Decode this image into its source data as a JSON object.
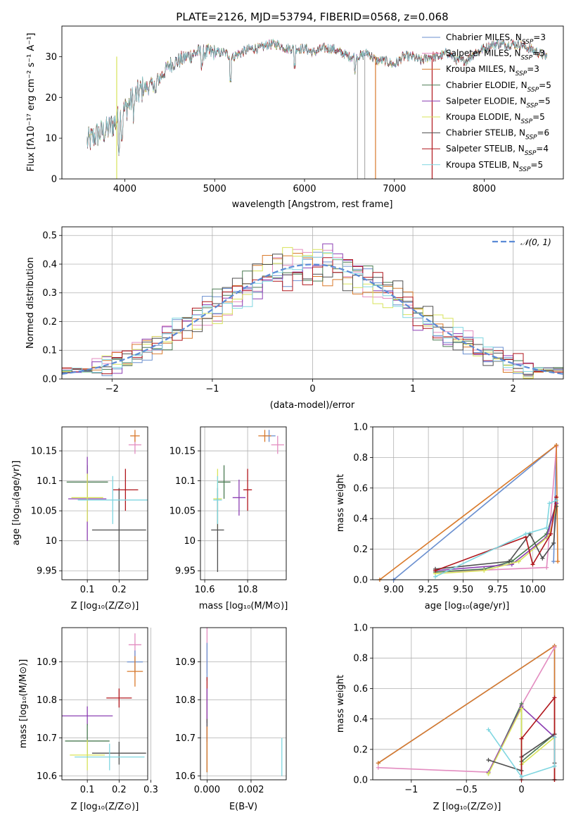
{
  "chart_data": [
    {
      "id": "spectrum",
      "type": "line",
      "title": "PLATE=2126, MJD=53794, FIBERID=0568, z=0.068",
      "xlabel": "wavelength [Angstrom, rest frame]",
      "ylabel": "Flux [fλ10⁻¹⁷ erg cm⁻² s⁻¹ A⁻¹]",
      "xlim": [
        3300,
        8880
      ],
      "ylim": [
        0,
        37.5
      ],
      "xticks": [
        4000,
        5000,
        6000,
        7000,
        8000
      ],
      "yticks": [
        0,
        10,
        20,
        30
      ],
      "grid": false,
      "legend_position": "top-right",
      "series": [
        {
          "name": "Chabrier MILES, N_SSP=3",
          "color": "#6a8fcf"
        },
        {
          "name": "Salpeter MILES, N_SSP=3",
          "color": "#e38cc0"
        },
        {
          "name": "Kroupa MILES, N_SSP=3",
          "color": "#d97a2b"
        },
        {
          "name": "Chabrier ELODIE, N_SSP=5",
          "color": "#4a7a52"
        },
        {
          "name": "Salpeter ELODIE, N_SSP=5",
          "color": "#8c3fb3"
        },
        {
          "name": "Kroupa ELODIE, N_SSP=5",
          "color": "#d7e35a"
        },
        {
          "name": "Chabrier STELIB, N_SSP=6",
          "color": "#4f4f4f"
        },
        {
          "name": "Salpeter STELIB, N_SSP=4",
          "color": "#b0161c"
        },
        {
          "name": "Kroupa STELIB, N_SSP=5",
          "color": "#7fd6e0"
        }
      ],
      "continuum_points": [
        [
          3580,
          9
        ],
        [
          3700,
          11
        ],
        [
          3800,
          12
        ],
        [
          3900,
          14
        ],
        [
          4000,
          17
        ],
        [
          4100,
          20
        ],
        [
          4200,
          22
        ],
        [
          4300,
          23
        ],
        [
          4400,
          25
        ],
        [
          4500,
          28
        ],
        [
          4600,
          29
        ],
        [
          4700,
          30
        ],
        [
          4800,
          31
        ],
        [
          4900,
          31
        ],
        [
          5000,
          31
        ],
        [
          5100,
          31
        ],
        [
          5200,
          30
        ],
        [
          5300,
          31
        ],
        [
          5400,
          32
        ],
        [
          5500,
          32
        ],
        [
          5600,
          33
        ],
        [
          5700,
          33
        ],
        [
          5800,
          32
        ],
        [
          5900,
          32
        ],
        [
          6000,
          32
        ],
        [
          6100,
          31
        ],
        [
          6200,
          32
        ],
        [
          6300,
          32
        ],
        [
          6400,
          31
        ],
        [
          6500,
          30
        ],
        [
          6600,
          30
        ],
        [
          6700,
          31
        ],
        [
          6800,
          29
        ],
        [
          6900,
          29
        ],
        [
          7000,
          28
        ],
        [
          7100,
          30
        ],
        [
          7200,
          30
        ],
        [
          7300,
          29
        ],
        [
          7400,
          30
        ],
        [
          7500,
          30
        ],
        [
          7600,
          31
        ],
        [
          7700,
          29
        ],
        [
          7800,
          29
        ],
        [
          7900,
          31
        ],
        [
          8000,
          32
        ],
        [
          8100,
          33
        ],
        [
          8200,
          33
        ],
        [
          8300,
          33
        ],
        [
          8400,
          33
        ],
        [
          8500,
          32
        ],
        [
          8600,
          31
        ],
        [
          8700,
          30
        ]
      ],
      "dropouts": [
        3910,
        6590,
        6670,
        6790,
        7420
      ]
    },
    {
      "id": "residuals",
      "type": "histogram",
      "xlabel": "(data-model)/error",
      "ylabel": "Normed distribution",
      "xlim": [
        -2.5,
        2.5
      ],
      "ylim": [
        0,
        0.53
      ],
      "xticks": [
        -2,
        -1,
        0,
        1,
        2
      ],
      "yticks": [
        0.0,
        0.1,
        0.2,
        0.3,
        0.4,
        0.5
      ],
      "grid": true,
      "legend": "𝒩(0, 1)",
      "legend_position": "top-right",
      "bin_width": 0.1,
      "reference_curve": "normal(0,1)",
      "series_color_order": [
        "#6a8fcf",
        "#e38cc0",
        "#d97a2b",
        "#4a7a52",
        "#8c3fb3",
        "#d7e35a",
        "#4f4f4f",
        "#b0161c",
        "#7fd6e0"
      ]
    },
    {
      "id": "z-age",
      "type": "scatter",
      "xlabel": "Z [log₁₀(Z/Z⊙)]",
      "ylabel": "age  [log₁₀(age/yr)]",
      "xlim": [
        0.02,
        0.29
      ],
      "ylim": [
        9.935,
        10.19
      ],
      "xticks": [
        0.1,
        0.2
      ],
      "yticks": [
        9.95,
        10.0,
        10.05,
        10.1,
        10.15
      ],
      "grid": true,
      "points": [
        {
          "x": 0.25,
          "y": 10.16,
          "xerr": 0.02,
          "yerr": 0.015,
          "color": "#e38cc0"
        },
        {
          "x": 0.25,
          "y": 10.175,
          "xerr": 0.015,
          "yerr": 0.01,
          "color": "#d97a2b"
        },
        {
          "x": 0.1,
          "y": 10.098,
          "xerr": 0.065,
          "yerr": 0.028,
          "color": "#4a7a52"
        },
        {
          "x": 0.1,
          "y": 10.07,
          "xerr": 0.06,
          "yerr": 0.07,
          "color": "#8c3fb3"
        },
        {
          "x": 0.1,
          "y": 10.072,
          "xerr": 0.05,
          "yerr": 0.04,
          "color": "#d7e35a"
        },
        {
          "x": 0.2,
          "y": 10.018,
          "xerr": 0.085,
          "yerr": 0.07,
          "color": "#4f4f4f"
        },
        {
          "x": 0.22,
          "y": 10.085,
          "xerr": 0.04,
          "yerr": 0.035,
          "color": "#b0161c"
        },
        {
          "x": 0.18,
          "y": 10.068,
          "xerr": 0.11,
          "yerr": 0.04,
          "color": "#7fd6e0"
        }
      ]
    },
    {
      "id": "mass-age",
      "type": "scatter",
      "xlabel": "mass [log₁₀(M/M⊙)]",
      "ylabel": "",
      "xlim": [
        10.58,
        10.98
      ],
      "ylim": [
        9.935,
        10.19
      ],
      "xticks": [
        10.6,
        10.8
      ],
      "yticks": [
        9.95,
        10.0,
        10.05,
        10.1,
        10.15
      ],
      "grid": true,
      "points": [
        {
          "x": 10.94,
          "y": 10.16,
          "xerr": 0.03,
          "yerr": 0.015,
          "color": "#e38cc0"
        },
        {
          "x": 10.9,
          "y": 10.175,
          "xerr": 0.03,
          "yerr": 0.01,
          "color": "#6a8fcf"
        },
        {
          "x": 10.88,
          "y": 10.175,
          "xerr": 0.03,
          "yerr": 0.01,
          "color": "#d97a2b"
        },
        {
          "x": 10.69,
          "y": 10.098,
          "xerr": 0.03,
          "yerr": 0.028,
          "color": "#4a7a52"
        },
        {
          "x": 10.76,
          "y": 10.072,
          "xerr": 0.03,
          "yerr": 0.03,
          "color": "#8c3fb3"
        },
        {
          "x": 10.66,
          "y": 10.07,
          "xerr": 0.02,
          "yerr": 0.05,
          "color": "#d7e35a"
        },
        {
          "x": 10.66,
          "y": 10.018,
          "xerr": 0.03,
          "yerr": 0.07,
          "color": "#4f4f4f"
        },
        {
          "x": 10.8,
          "y": 10.085,
          "xerr": 0.02,
          "yerr": 0.035,
          "color": "#b0161c"
        },
        {
          "x": 10.66,
          "y": 10.068,
          "xerr": 0.02,
          "yerr": 0.04,
          "color": "#7fd6e0"
        }
      ]
    },
    {
      "id": "age-weight",
      "type": "line",
      "xlabel": "age  [log₁₀(age/yr)]",
      "ylabel": "mass weight",
      "xlim": [
        8.85,
        10.22
      ],
      "ylim": [
        0.0,
        1.0
      ],
      "xticks": [
        9.0,
        9.25,
        9.5,
        9.75,
        10.0
      ],
      "xtick_labels": [
        "9.00",
        "9.25",
        "9.50",
        "9.75",
        "10.00"
      ],
      "yticks": [
        0.0,
        0.2,
        0.4,
        0.6,
        0.8,
        1.0
      ],
      "grid": true,
      "series": [
        {
          "color": "#6a8fcf",
          "points": [
            [
              9.0,
              0.0
            ],
            [
              10.17,
              0.88
            ],
            [
              10.15,
              0.12
            ]
          ]
        },
        {
          "color": "#e38cc0",
          "points": [
            [
              9.3,
              0.05
            ],
            [
              10.1,
              0.08
            ],
            [
              10.17,
              0.87
            ]
          ]
        },
        {
          "color": "#d97a2b",
          "points": [
            [
              8.9,
              0.0
            ],
            [
              10.17,
              0.88
            ],
            [
              10.18,
              0.12
            ]
          ]
        },
        {
          "color": "#4a7a52",
          "points": [
            [
              9.3,
              0.05
            ],
            [
              9.65,
              0.07
            ],
            [
              9.85,
              0.12
            ],
            [
              10.1,
              0.3
            ],
            [
              10.17,
              0.5
            ]
          ]
        },
        {
          "color": "#8c3fb3",
          "points": [
            [
              9.3,
              0.06
            ],
            [
              9.85,
              0.1
            ],
            [
              10.1,
              0.28
            ],
            [
              10.17,
              0.5
            ]
          ]
        },
        {
          "color": "#d7e35a",
          "points": [
            [
              9.3,
              0.04
            ],
            [
              9.65,
              0.06
            ],
            [
              9.9,
              0.12
            ],
            [
              10.12,
              0.29
            ],
            [
              10.17,
              0.48
            ]
          ]
        },
        {
          "color": "#4f4f4f",
          "points": [
            [
              9.3,
              0.07
            ],
            [
              9.83,
              0.12
            ],
            [
              9.98,
              0.3
            ],
            [
              10.07,
              0.14
            ],
            [
              10.15,
              0.24
            ],
            [
              10.17,
              0.48
            ]
          ]
        },
        {
          "color": "#b0161c",
          "points": [
            [
              9.3,
              0.06
            ],
            [
              9.95,
              0.28
            ],
            [
              10.0,
              0.1
            ],
            [
              10.13,
              0.3
            ],
            [
              10.17,
              0.54
            ]
          ]
        },
        {
          "color": "#7fd6e0",
          "points": [
            [
              9.3,
              0.02
            ],
            [
              9.95,
              0.3
            ],
            [
              10.1,
              0.34
            ],
            [
              10.12,
              0.5
            ],
            [
              10.17,
              0.52
            ]
          ]
        }
      ]
    },
    {
      "id": "z-mass",
      "type": "scatter",
      "xlabel": "Z [log₁₀(Z/Z⊙)]",
      "ylabel": "mass [log₁₀(M/M⊙)]",
      "xlim": [
        0.02,
        0.29
      ],
      "ylim": [
        10.59,
        10.99
      ],
      "xticks": [
        0.1,
        0.2,
        0.3
      ],
      "yticks": [
        10.6,
        10.7,
        10.8,
        10.9
      ],
      "grid": true,
      "points": [
        {
          "x": 0.25,
          "y": 10.945,
          "xerr": 0.02,
          "yerr": 0.03,
          "color": "#e38cc0"
        },
        {
          "x": 0.25,
          "y": 10.9,
          "xerr": 0.025,
          "yerr": 0.03,
          "color": "#6a8fcf"
        },
        {
          "x": 0.25,
          "y": 10.875,
          "xerr": 0.025,
          "yerr": 0.04,
          "color": "#d97a2b"
        },
        {
          "x": 0.2,
          "y": 10.805,
          "xerr": 0.04,
          "yerr": 0.025,
          "color": "#b0161c"
        },
        {
          "x": 0.1,
          "y": 10.758,
          "xerr": 0.08,
          "yerr": 0.025,
          "color": "#8c3fb3"
        },
        {
          "x": 0.1,
          "y": 10.692,
          "xerr": 0.07,
          "yerr": 0.045,
          "color": "#4a7a52"
        },
        {
          "x": 0.1,
          "y": 10.655,
          "xerr": 0.055,
          "yerr": 0.04,
          "color": "#d7e35a"
        },
        {
          "x": 0.2,
          "y": 10.66,
          "xerr": 0.085,
          "yerr": 0.03,
          "color": "#4f4f4f"
        },
        {
          "x": 0.17,
          "y": 10.65,
          "xerr": 0.11,
          "yerr": 0.035,
          "color": "#7fd6e0"
        }
      ]
    },
    {
      "id": "ebv-mass",
      "type": "scatter",
      "xlabel": "E(B-V)",
      "ylabel": "",
      "xlim": [
        -0.0003,
        0.0036
      ],
      "ylim": [
        10.59,
        10.99
      ],
      "xticks": [
        0.0,
        0.002
      ],
      "xtick_labels": [
        "0.000",
        "0.002"
      ],
      "yticks": [
        10.6,
        10.7,
        10.8,
        10.9
      ],
      "grid": true,
      "points": [
        {
          "x": 0.0,
          "y": 10.93,
          "xerr": 0,
          "yerr": 0.06,
          "color": "#e38cc0"
        },
        {
          "x": 0.0,
          "y": 10.9,
          "xerr": 0,
          "yerr": 0.05,
          "color": "#6a8fcf"
        },
        {
          "x": 0.0,
          "y": 10.8,
          "xerr": 0,
          "yerr": 0.06,
          "color": "#b0161c"
        },
        {
          "x": 0.0,
          "y": 10.76,
          "xerr": 0,
          "yerr": 0.07,
          "color": "#8c3fb3"
        },
        {
          "x": 0.0,
          "y": 10.68,
          "xerr": 0,
          "yerr": 0.07,
          "color": "#4f4f4f"
        },
        {
          "x": 0.0,
          "y": 10.67,
          "xerr": 0,
          "yerr": 0.06,
          "color": "#d97a2b"
        },
        {
          "x": 0.0034,
          "y": 10.65,
          "xerr": 0,
          "yerr": 0.05,
          "color": "#7fd6e0"
        }
      ]
    },
    {
      "id": "z-weight",
      "type": "line",
      "xlabel": "Z [log₁₀(Z/Z⊙)]",
      "ylabel": "mass weight",
      "xlim": [
        -1.35,
        0.38
      ],
      "ylim": [
        0.0,
        1.0
      ],
      "xticks": [
        -1.0,
        -0.5,
        0.0
      ],
      "yticks": [
        0.0,
        0.2,
        0.4,
        0.6,
        0.8,
        1.0
      ],
      "grid": true,
      "series": [
        {
          "color": "#6a8fcf",
          "points": [
            [
              -1.3,
              0.11
            ],
            [
              0.3,
              0.88
            ],
            [
              0.3,
              0.0
            ]
          ]
        },
        {
          "color": "#d97a2b",
          "points": [
            [
              -1.3,
              0.11
            ],
            [
              0.3,
              0.88
            ],
            [
              0.3,
              0.0
            ]
          ]
        },
        {
          "color": "#e38cc0",
          "points": [
            [
              -1.3,
              0.08
            ],
            [
              -0.3,
              0.05
            ],
            [
              0.0,
              0.49
            ],
            [
              0.3,
              0.87
            ]
          ]
        },
        {
          "color": "#4a7a52",
          "points": [
            [
              -0.3,
              0.04
            ],
            [
              0.0,
              0.5
            ],
            [
              0.0,
              0.12
            ],
            [
              0.3,
              0.3
            ]
          ]
        },
        {
          "color": "#8c3fb3",
          "points": [
            [
              -0.3,
              0.05
            ],
            [
              0.0,
              0.48
            ],
            [
              0.3,
              0.28
            ]
          ]
        },
        {
          "color": "#d7e35a",
          "points": [
            [
              -0.3,
              0.04
            ],
            [
              0.0,
              0.47
            ],
            [
              0.0,
              0.1
            ],
            [
              0.3,
              0.28
            ]
          ]
        },
        {
          "color": "#4f4f4f",
          "points": [
            [
              -0.3,
              0.13
            ],
            [
              0.0,
              0.06
            ],
            [
              0.0,
              0.15
            ],
            [
              0.3,
              0.3
            ],
            [
              0.3,
              0.11
            ]
          ]
        },
        {
          "color": "#b0161c",
          "points": [
            [
              0.0,
              0.0
            ],
            [
              0.0,
              0.27
            ],
            [
              0.3,
              0.54
            ],
            [
              0.3,
              0.0
            ]
          ]
        },
        {
          "color": "#7fd6e0",
          "points": [
            [
              -0.3,
              0.33
            ],
            [
              0.0,
              0.02
            ],
            [
              0.3,
              0.09
            ],
            [
              0.3,
              0.28
            ]
          ]
        }
      ]
    }
  ]
}
